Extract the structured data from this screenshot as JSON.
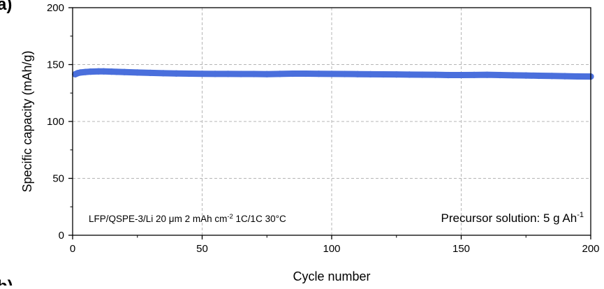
{
  "chart_data": {
    "type": "scatter",
    "title": "",
    "xlabel": "Cycle number",
    "ylabel": "Specific capacity (mAh/g)",
    "xlim": [
      0,
      200
    ],
    "ylim": [
      0,
      200
    ],
    "x_ticks": [
      0,
      50,
      100,
      150,
      200
    ],
    "y_ticks": [
      0,
      50,
      100,
      150,
      200
    ],
    "x_tick_labels": [
      "0",
      "50",
      "100",
      "150",
      "200"
    ],
    "y_tick_labels": [
      "0",
      "50",
      "100",
      "150",
      "200"
    ],
    "grid": true,
    "series_color": "#4a6fdc",
    "series": [
      {
        "x": [
          1,
          2,
          3,
          5,
          7,
          10,
          12,
          15,
          17,
          20,
          25,
          30,
          35,
          40,
          45,
          50,
          55,
          60,
          65,
          70,
          75,
          80,
          85,
          90,
          95,
          100,
          105,
          110,
          115,
          120,
          125,
          130,
          135,
          140,
          145,
          150,
          155,
          160,
          165,
          170,
          175,
          180,
          185,
          190,
          195,
          200
        ],
        "y": [
          141.5,
          142.5,
          143.0,
          143.5,
          143.8,
          144.0,
          144.0,
          143.8,
          143.6,
          143.4,
          143.0,
          142.7,
          142.4,
          142.2,
          142.0,
          141.9,
          141.8,
          141.8,
          141.7,
          141.7,
          141.6,
          141.8,
          142.0,
          142.0,
          141.9,
          141.8,
          141.7,
          141.6,
          141.5,
          141.4,
          141.3,
          141.2,
          141.1,
          141.0,
          140.8,
          140.8,
          140.9,
          141.0,
          140.8,
          140.6,
          140.4,
          140.2,
          140.0,
          139.8,
          139.6,
          139.5
        ]
      }
    ],
    "annotations": {
      "left_label": "LFP/QSPE-3/Li 20 μm 2 mAh cm",
      "left_sup": "-2",
      "left_tail": " 1C/1C 30°C",
      "right_label": "Precursor solution: 5 g Ah",
      "right_sup": "-1"
    }
  },
  "panel_labels": {
    "top": "(a)",
    "bottom": "(b)"
  }
}
